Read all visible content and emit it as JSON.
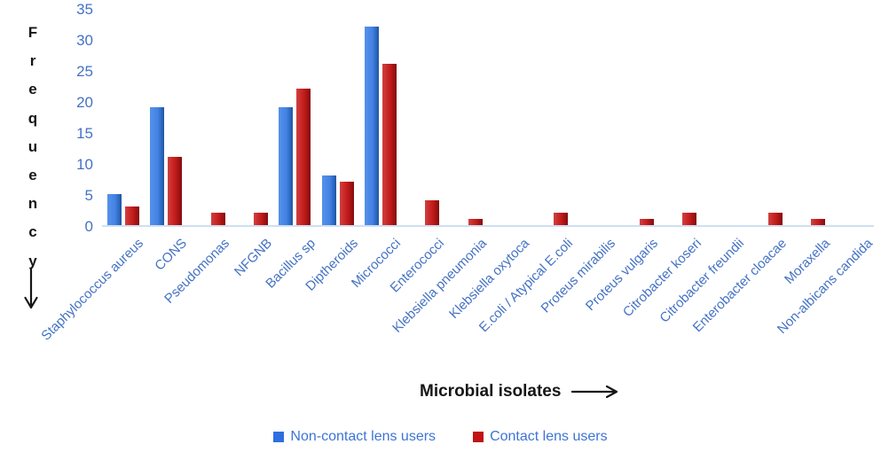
{
  "chart_data": {
    "type": "bar",
    "title": "",
    "xlabel": "Microbial isolates",
    "ylabel": "Frequency",
    "categories": [
      "Staphylococcus aureus",
      "CONS",
      "Pseudomonas",
      "NFGNB",
      "Bacillus sp",
      "Diptheroids",
      "Micrococci",
      "Enterococci",
      "Klebsiella pneumonia",
      "Klebsiella oxytoca",
      "E.coli / Atypical E.coli",
      "Proteus mirabilis",
      "Proteus vulgaris",
      "Citrobacter koseri",
      "Citrobacter freundii",
      "Enterobacter cloacae",
      "Moraxella",
      "Non-albicans candida"
    ],
    "series": [
      {
        "name": "Non-contact lens users",
        "color": "#3a79dd",
        "values": [
          5,
          19,
          0,
          0,
          19,
          8,
          32,
          0,
          0,
          0,
          0,
          0,
          0,
          0,
          0,
          0,
          0,
          0
        ]
      },
      {
        "name": "Contact lens users",
        "color": "#c11717",
        "values": [
          3,
          11,
          2,
          2,
          22,
          7,
          26,
          4,
          1,
          0,
          2,
          0,
          1,
          2,
          0,
          2,
          1,
          0
        ]
      }
    ],
    "ylim": [
      0,
      35
    ],
    "yticks": [
      0,
      5,
      10,
      15,
      20,
      25,
      30,
      35
    ],
    "grid": false,
    "legend_position": "bottom"
  },
  "styles": {
    "tick_label_color": "#4472c4",
    "category_label_color": "#4472c4",
    "legend_text_color": "#3d74d6",
    "axis_line_color": "#cfe0f1",
    "title_color": "#161616"
  }
}
